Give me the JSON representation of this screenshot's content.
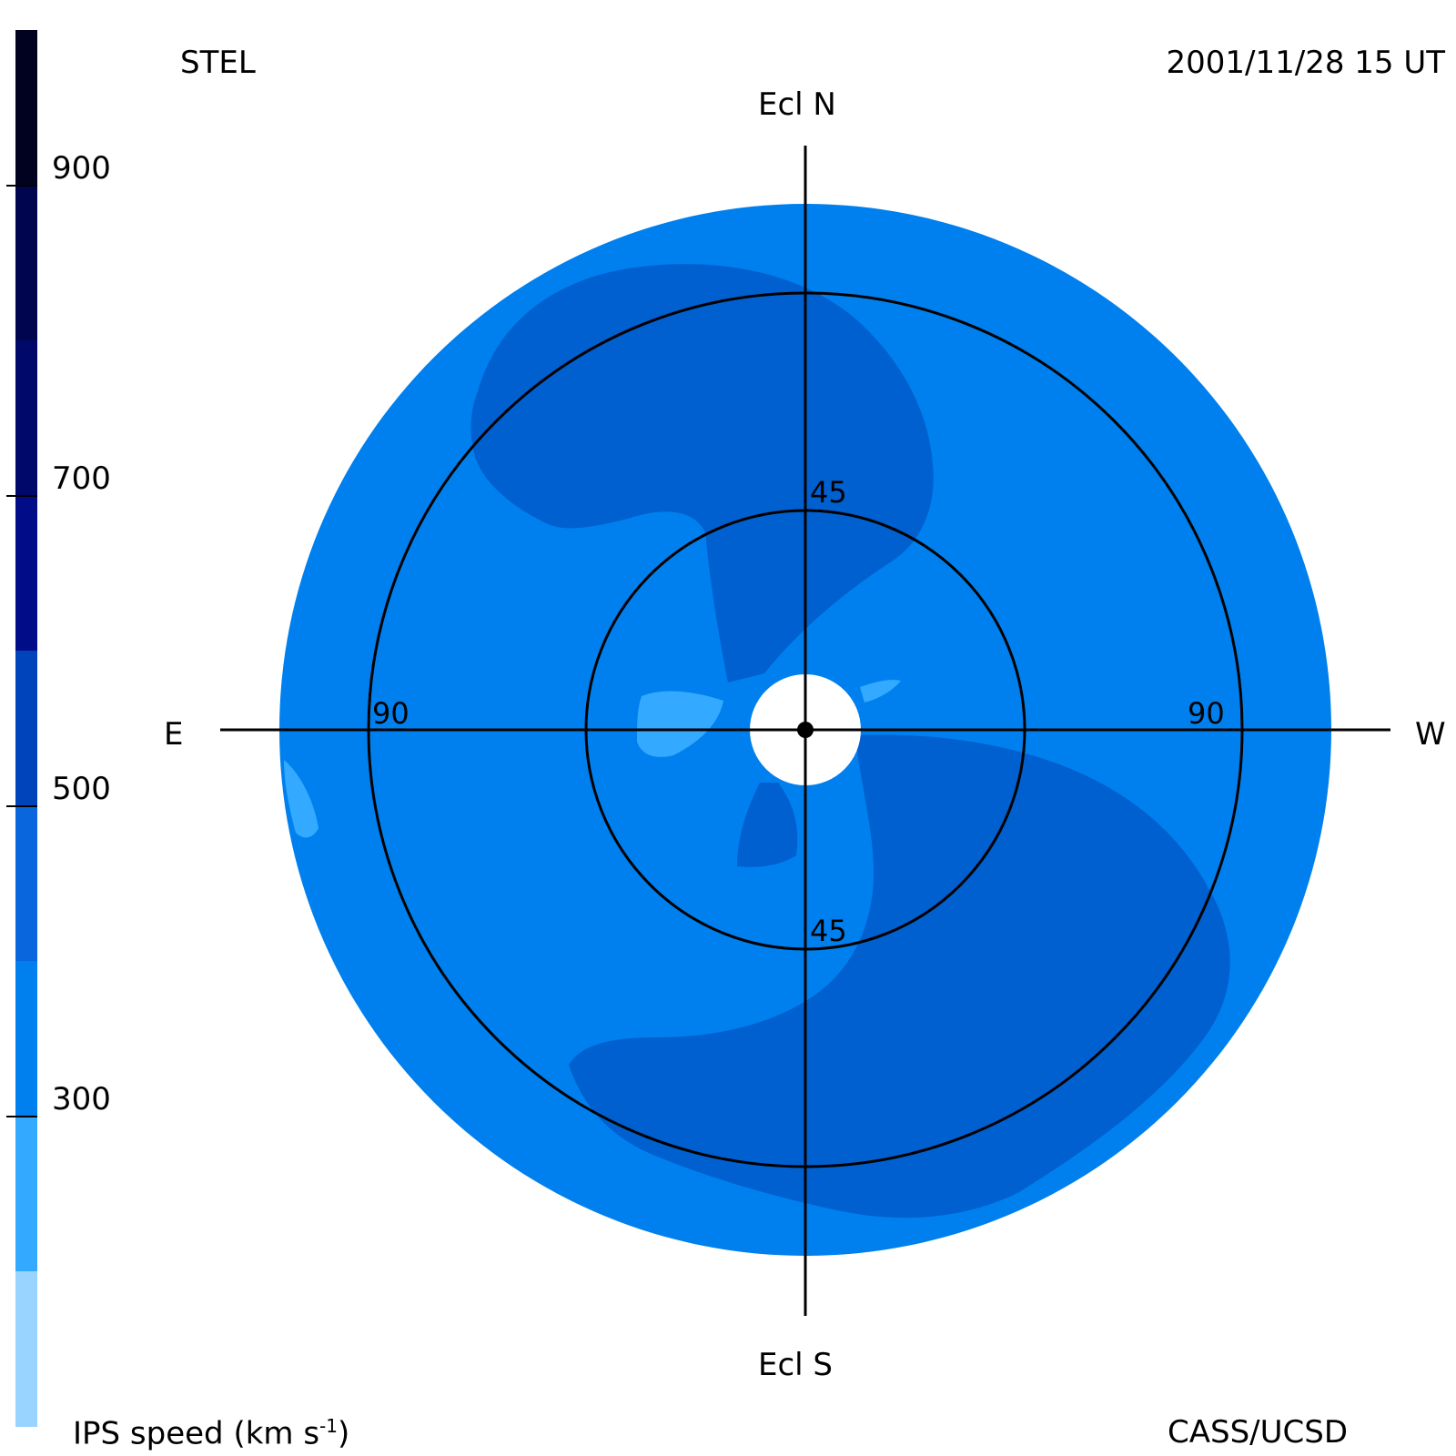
{
  "header": {
    "observatory": "STEL",
    "datetime": "2001/11/28 15 UT"
  },
  "footer": {
    "colorbar_title": "IPS speed (km s",
    "colorbar_title_sup": "-1",
    "colorbar_title_end": ")",
    "credit": "CASS/UCSD"
  },
  "compass": {
    "north": "Ecl N",
    "south": "Ecl S",
    "east": "E",
    "west": "W"
  },
  "rings": {
    "inner_n": "45",
    "inner_s": "45",
    "outer_e": "90",
    "outer_w": "90"
  },
  "colorbar": {
    "min": 100,
    "max": 1000,
    "ticks": [
      "900",
      "700",
      "500",
      "300"
    ],
    "tick_values": [
      900,
      700,
      500,
      300
    ],
    "levels": [
      {
        "from": 100,
        "to": 200,
        "color": "#99d3ff"
      },
      {
        "from": 200,
        "to": 300,
        "color": "#33aaff"
      },
      {
        "from": 300,
        "to": 400,
        "color": "#0080ee"
      },
      {
        "from": 400,
        "to": 500,
        "color": "#0a66dd"
      },
      {
        "from": 500,
        "to": 600,
        "color": "#0044bb"
      },
      {
        "from": 600,
        "to": 700,
        "color": "#000c88"
      },
      {
        "from": 700,
        "to": 800,
        "color": "#00086a"
      },
      {
        "from": 800,
        "to": 900,
        "color": "#000550"
      },
      {
        "from": 900,
        "to": 1000,
        "color": "#00021f"
      }
    ]
  },
  "map_colors": {
    "background_speed": "#0080ee",
    "fast_stream": "#0060d0",
    "slow_stream": "#33aaff",
    "sun_disk": "#ffffff"
  }
}
